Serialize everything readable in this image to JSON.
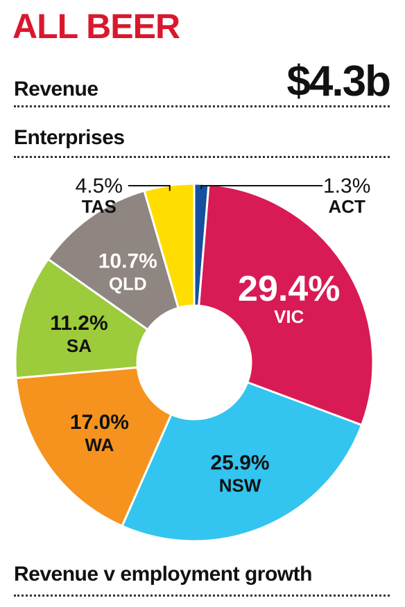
{
  "header": {
    "title": "ALL BEER",
    "revenue_label": "Revenue",
    "revenue_value": "$4.3b",
    "enterprises_label": "Enterprises",
    "footer_label": "Revenue v employment growth"
  },
  "colors": {
    "title": "#d9182d",
    "VIC": "#d81b55",
    "NSW": "#33c4ef",
    "WA": "#f5931e",
    "SA": "#9ccb3b",
    "QLD": "#8f8581",
    "TAS": "#ffdd00",
    "ACT": "#1550a0"
  },
  "chart_data": {
    "type": "pie",
    "donut": true,
    "title": "",
    "categories": [
      "ACT",
      "VIC",
      "NSW",
      "WA",
      "SA",
      "QLD",
      "TAS"
    ],
    "values": [
      1.3,
      29.4,
      25.9,
      17.0,
      11.2,
      10.7,
      4.5
    ],
    "labels": [
      "1.3%",
      "29.4%",
      "25.9%",
      "17.0%",
      "11.2%",
      "10.7%",
      "4.5%"
    ],
    "unit": "%"
  }
}
